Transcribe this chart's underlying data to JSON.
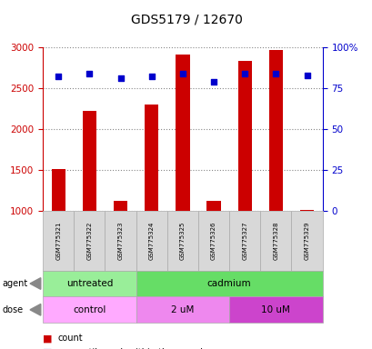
{
  "title": "GDS5179 / 12670",
  "samples": [
    "GSM775321",
    "GSM775322",
    "GSM775323",
    "GSM775324",
    "GSM775325",
    "GSM775326",
    "GSM775327",
    "GSM775328",
    "GSM775329"
  ],
  "counts": [
    1510,
    2220,
    1130,
    2300,
    2910,
    1130,
    2830,
    2960,
    1020
  ],
  "percentile_ranks": [
    82,
    84,
    81,
    82,
    84,
    79,
    84,
    84,
    83
  ],
  "ylim_left": [
    1000,
    3000
  ],
  "ylim_right": [
    0,
    100
  ],
  "left_ticks": [
    1000,
    1500,
    2000,
    2500,
    3000
  ],
  "right_tick_labels": [
    "0",
    "25",
    "50",
    "75",
    "100%"
  ],
  "right_ticks": [
    0,
    25,
    50,
    75,
    100
  ],
  "left_color": "#cc0000",
  "right_color": "#0000cc",
  "bar_color": "#cc0000",
  "dot_color": "#0000cc",
  "agent_groups": [
    {
      "label": "untreated",
      "start": 0,
      "end": 3,
      "color": "#99EE99"
    },
    {
      "label": "cadmium",
      "start": 3,
      "end": 9,
      "color": "#66DD66"
    }
  ],
  "dose_groups": [
    {
      "label": "control",
      "start": 0,
      "end": 3,
      "color": "#FFAAFF"
    },
    {
      "label": "2 uM",
      "start": 3,
      "end": 6,
      "color": "#EE88EE"
    },
    {
      "label": "10 uM",
      "start": 6,
      "end": 9,
      "color": "#CC44CC"
    }
  ],
  "grid_color": "#888888",
  "bg_color": "#ffffff",
  "bar_width": 0.45
}
